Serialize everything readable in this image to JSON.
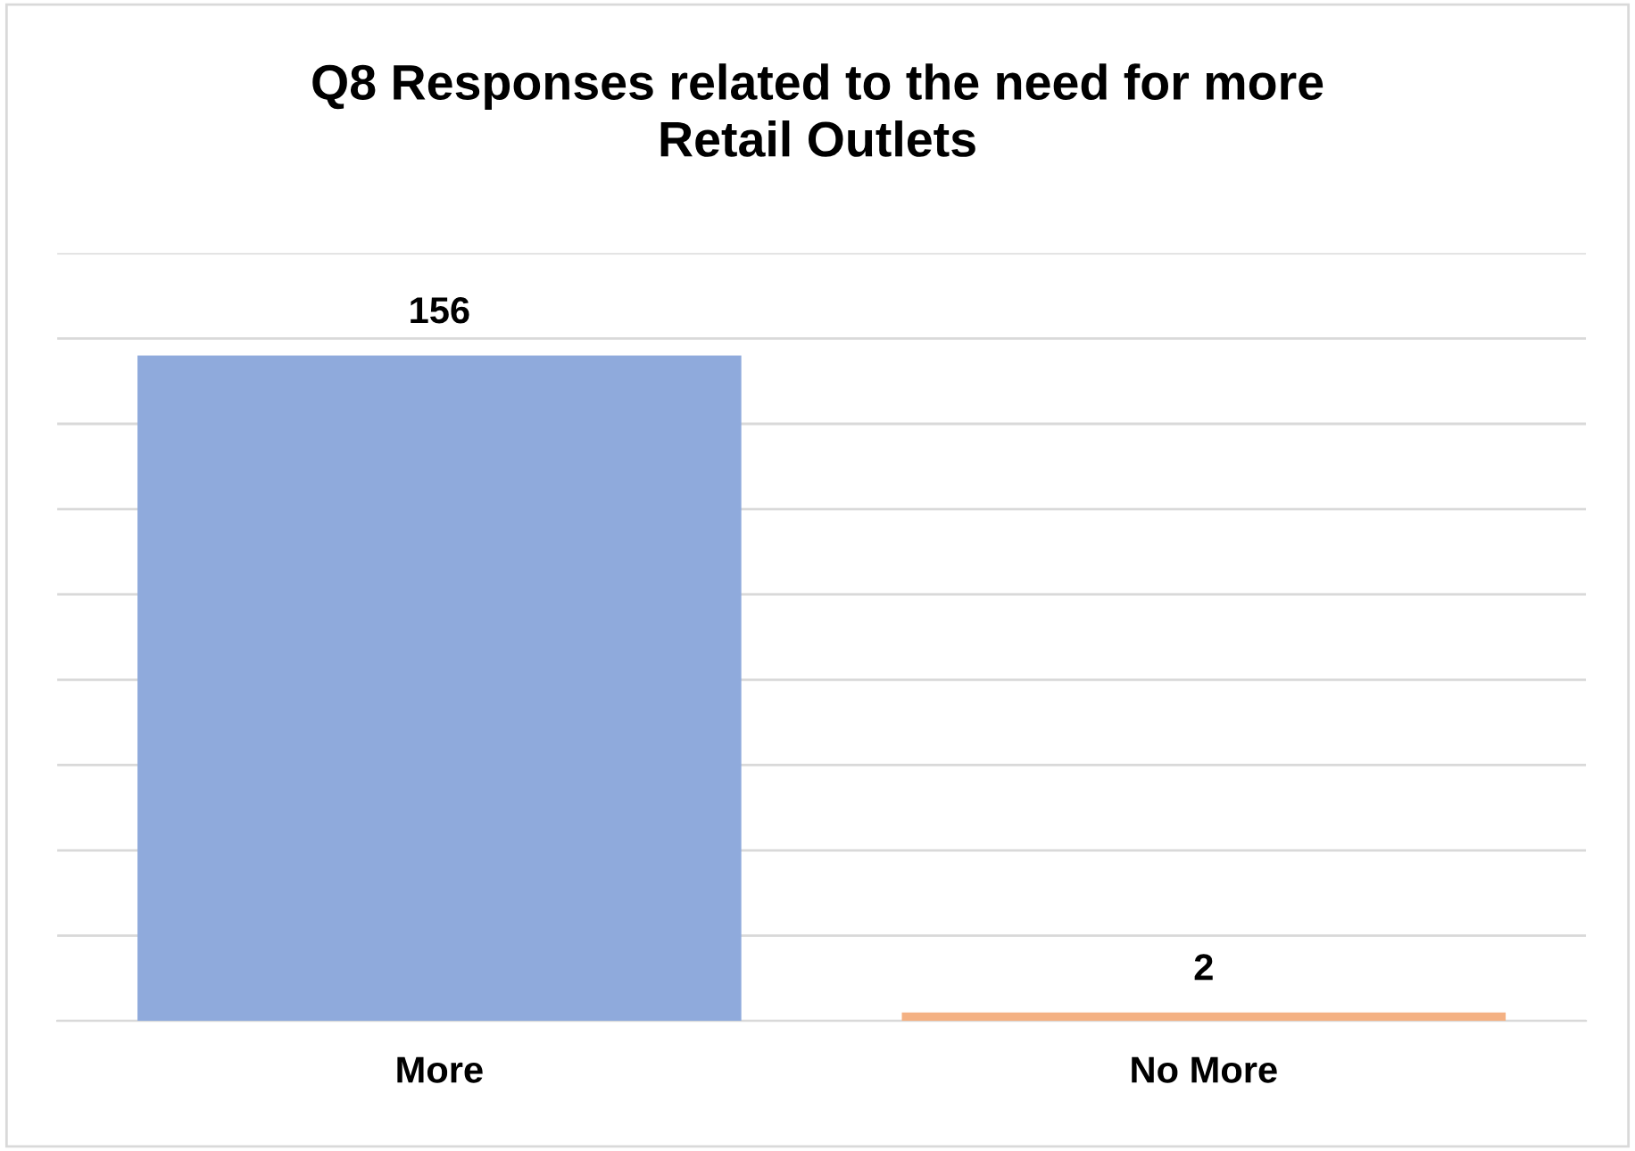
{
  "chart_data": {
    "type": "bar",
    "title": "Q8 Responses related to the need for more\nRetail Outlets",
    "categories": [
      "More",
      "No More"
    ],
    "values": [
      156,
      2
    ],
    "colors": [
      "#8faadc",
      "#f4b183"
    ],
    "ylim": [
      0,
      180
    ],
    "yticks": [
      0,
      20,
      40,
      60,
      80,
      100,
      120,
      140,
      160,
      180
    ],
    "tick_labels": "x",
    "grid": "y",
    "data_labels": true,
    "legend": false
  }
}
